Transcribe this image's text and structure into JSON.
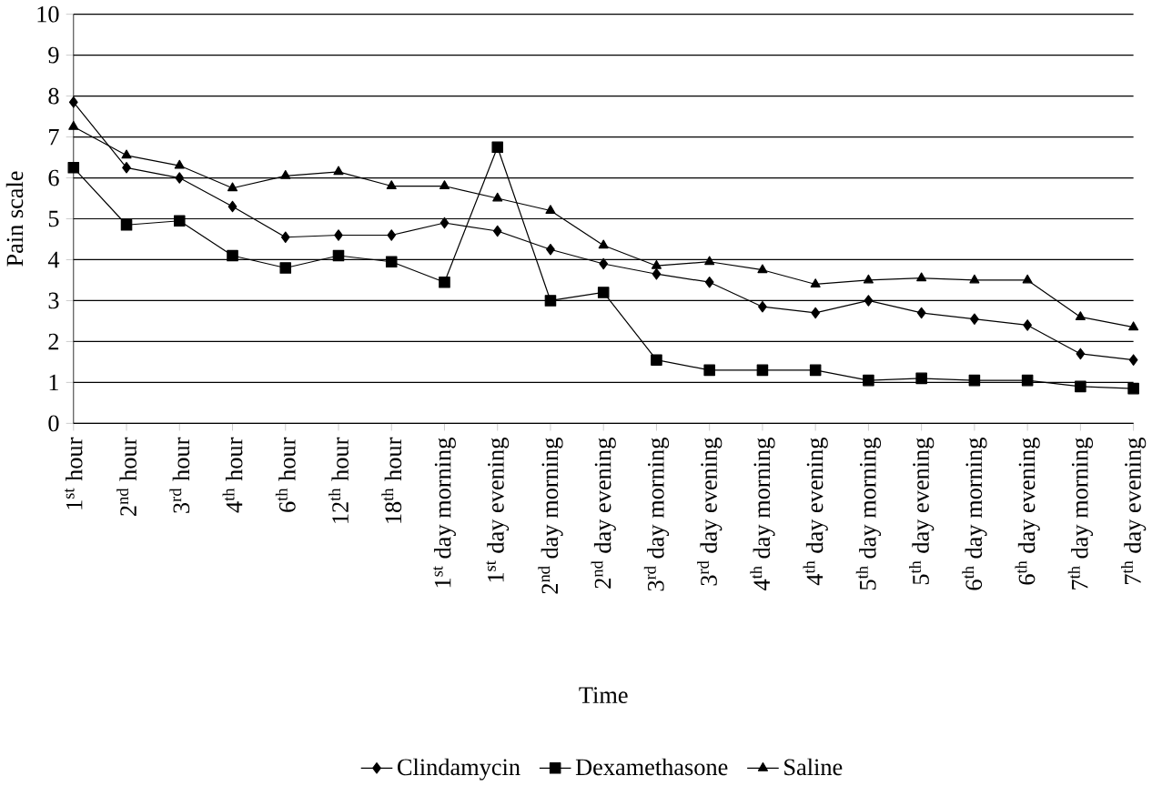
{
  "chart_data": {
    "type": "line",
    "xlabel": "Time",
    "ylabel": "Pain scale",
    "categories": [
      "1$^{st}$ hour",
      "2$^{nd}$ hour",
      "3$^{rd}$ hour",
      "4$^{th}$ hour",
      "6$^{th}$ hour",
      "12$^{th}$ hour",
      "18$^{th}$ hour",
      "1$^{st}$ day morning",
      "1$^{st}$ day evening",
      "2$^{nd}$ day morning",
      "2$^{nd}$ day evening",
      "3$^{rd}$ day morning",
      "3$^{rd}$ day evening",
      "4$^{th}$ day morning",
      "4$^{th}$ day evening",
      "5$^{th}$ day morning",
      "5$^{th}$ day evening",
      "6$^{th}$ day morning",
      "6$^{th}$ day evening",
      "7$^{th}$ day morning",
      "7$^{th}$ day evening"
    ],
    "series": [
      {
        "name": "Clindamycin",
        "color": "#000000",
        "marker": "diamond",
        "values": [
          7.85,
          6.25,
          6.0,
          5.3,
          4.55,
          4.6,
          4.6,
          4.9,
          4.7,
          4.25,
          3.9,
          3.65,
          3.45,
          2.85,
          2.7,
          3.0,
          2.7,
          2.55,
          2.4,
          1.7,
          1.55
        ]
      },
      {
        "name": "Dexamethasone",
        "color": "#000000",
        "marker": "square",
        "values": [
          6.25,
          4.85,
          4.95,
          4.1,
          3.8,
          4.1,
          3.95,
          3.45,
          6.75,
          3.0,
          3.2,
          1.55,
          1.3,
          1.3,
          1.3,
          1.05,
          1.1,
          1.05,
          1.05,
          0.9,
          0.85
        ]
      },
      {
        "name": "Saline",
        "color": "#000000",
        "marker": "triangle",
        "values": [
          7.25,
          6.55,
          6.3,
          5.75,
          6.05,
          6.15,
          5.8,
          5.8,
          5.5,
          5.2,
          4.35,
          3.85,
          3.95,
          3.75,
          3.4,
          3.5,
          3.55,
          3.5,
          3.5,
          2.6,
          2.35
        ]
      }
    ],
    "ylim": [
      0,
      10
    ],
    "yticks": [
      0,
      1,
      2,
      3,
      4,
      5,
      6,
      7,
      8,
      9,
      10
    ],
    "grid": "y",
    "legend": "bottom",
    "line_style": "solid"
  }
}
